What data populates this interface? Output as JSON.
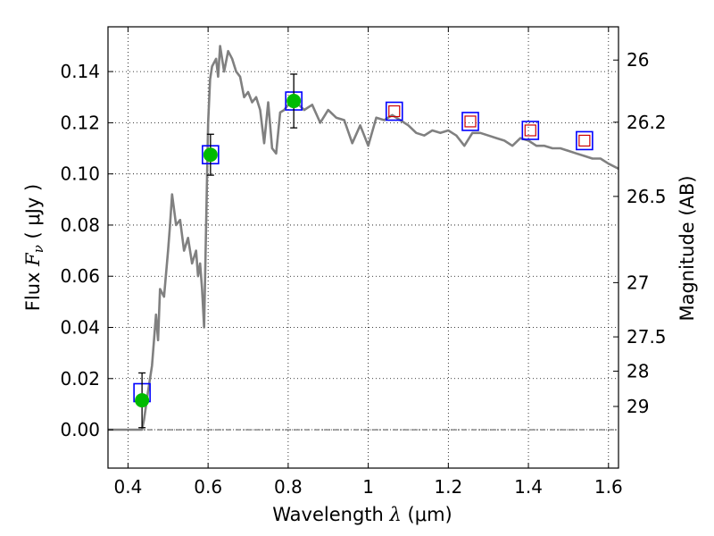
{
  "chart_data": {
    "type": "line",
    "xlabel": "Wavelength",
    "xlabel_symbol": "λ",
    "xlabel_unit": "(μm)",
    "ylabel": "Flux",
    "ylabel_symbol": "F",
    "ylabel_subscript": "ν",
    "ylabel_unit": "( μJy )",
    "y2label": "Magnitude (AB)",
    "xlim": [
      0.35,
      1.625
    ],
    "ylim": [
      -0.015,
      0.1575
    ],
    "x_ticks": [
      0.4,
      0.6,
      0.8,
      1.0,
      1.2,
      1.4,
      1.6
    ],
    "x_tick_labels": [
      "0.4",
      "0.6",
      "0.8",
      "1",
      "1.2",
      "1.4",
      "1.6"
    ],
    "y_ticks": [
      0.0,
      0.02,
      0.04,
      0.06,
      0.08,
      0.1,
      0.12,
      0.14
    ],
    "y_tick_labels": [
      "0.00",
      "0.02",
      "0.04",
      "0.06",
      "0.08",
      "0.10",
      "0.12",
      "0.14"
    ],
    "y2_ticks": [
      {
        "label": "26",
        "flux": 0.1445
      },
      {
        "label": "26.2",
        "flux": 0.1202
      },
      {
        "label": "26.5",
        "flux": 0.0912
      },
      {
        "label": "27",
        "flux": 0.0575
      },
      {
        "label": "27.5",
        "flux": 0.0363
      },
      {
        "label": "28",
        "flux": 0.0229
      },
      {
        "label": "29",
        "flux": 0.0091
      }
    ],
    "grid": true,
    "zero_line": 0.0,
    "model_color": "#808080",
    "model_spectrum": [
      [
        0.35,
        0.0
      ],
      [
        0.435,
        0.0
      ],
      [
        0.44,
        0.004
      ],
      [
        0.45,
        0.015
      ],
      [
        0.46,
        0.025
      ],
      [
        0.47,
        0.045
      ],
      [
        0.475,
        0.035
      ],
      [
        0.48,
        0.055
      ],
      [
        0.49,
        0.052
      ],
      [
        0.5,
        0.07
      ],
      [
        0.505,
        0.08
      ],
      [
        0.51,
        0.092
      ],
      [
        0.52,
        0.08
      ],
      [
        0.53,
        0.082
      ],
      [
        0.54,
        0.07
      ],
      [
        0.55,
        0.075
      ],
      [
        0.56,
        0.065
      ],
      [
        0.57,
        0.07
      ],
      [
        0.575,
        0.06
      ],
      [
        0.58,
        0.065
      ],
      [
        0.585,
        0.055
      ],
      [
        0.59,
        0.04
      ],
      [
        0.6,
        0.12
      ],
      [
        0.605,
        0.137
      ],
      [
        0.61,
        0.142
      ],
      [
        0.62,
        0.145
      ],
      [
        0.625,
        0.138
      ],
      [
        0.63,
        0.15
      ],
      [
        0.64,
        0.14
      ],
      [
        0.65,
        0.148
      ],
      [
        0.66,
        0.145
      ],
      [
        0.67,
        0.14
      ],
      [
        0.68,
        0.138
      ],
      [
        0.69,
        0.13
      ],
      [
        0.7,
        0.132
      ],
      [
        0.71,
        0.128
      ],
      [
        0.72,
        0.13
      ],
      [
        0.73,
        0.125
      ],
      [
        0.74,
        0.112
      ],
      [
        0.75,
        0.128
      ],
      [
        0.76,
        0.11
      ],
      [
        0.77,
        0.108
      ],
      [
        0.78,
        0.124
      ],
      [
        0.79,
        0.125
      ],
      [
        0.8,
        0.127
      ],
      [
        0.82,
        0.128
      ],
      [
        0.84,
        0.125
      ],
      [
        0.86,
        0.127
      ],
      [
        0.88,
        0.12
      ],
      [
        0.9,
        0.125
      ],
      [
        0.92,
        0.122
      ],
      [
        0.94,
        0.121
      ],
      [
        0.96,
        0.112
      ],
      [
        0.98,
        0.119
      ],
      [
        1.0,
        0.111
      ],
      [
        1.02,
        0.122
      ],
      [
        1.04,
        0.121
      ],
      [
        1.06,
        0.123
      ],
      [
        1.08,
        0.121
      ],
      [
        1.1,
        0.119
      ],
      [
        1.12,
        0.116
      ],
      [
        1.14,
        0.115
      ],
      [
        1.16,
        0.117
      ],
      [
        1.18,
        0.116
      ],
      [
        1.2,
        0.117
      ],
      [
        1.22,
        0.115
      ],
      [
        1.24,
        0.111
      ],
      [
        1.26,
        0.116
      ],
      [
        1.28,
        0.116
      ],
      [
        1.3,
        0.115
      ],
      [
        1.32,
        0.114
      ],
      [
        1.34,
        0.113
      ],
      [
        1.36,
        0.111
      ],
      [
        1.38,
        0.114
      ],
      [
        1.4,
        0.113
      ],
      [
        1.42,
        0.111
      ],
      [
        1.44,
        0.111
      ],
      [
        1.46,
        0.11
      ],
      [
        1.48,
        0.11
      ],
      [
        1.5,
        0.109
      ],
      [
        1.52,
        0.108
      ],
      [
        1.54,
        0.107
      ],
      [
        1.56,
        0.106
      ],
      [
        1.58,
        0.106
      ],
      [
        1.6,
        0.104
      ],
      [
        1.625,
        0.102
      ]
    ],
    "observed_points": [
      {
        "x": 0.435,
        "y": 0.0115,
        "yerr": 0.0107,
        "color": "#00bb00"
      },
      {
        "x": 0.606,
        "y": 0.1075,
        "yerr": 0.008,
        "color": "#00bb00"
      },
      {
        "x": 0.814,
        "y": 0.1285,
        "yerr": 0.0105,
        "color": "#00bb00"
      }
    ],
    "model_band_fluxes": [
      {
        "x": 0.435,
        "y": 0.0145,
        "predicted_only": false
      },
      {
        "x": 0.606,
        "y": 0.1075,
        "predicted_only": false
      },
      {
        "x": 0.814,
        "y": 0.1285,
        "predicted_only": false
      },
      {
        "x": 1.065,
        "y": 0.1245,
        "predicted_only": true
      },
      {
        "x": 1.255,
        "y": 0.1205,
        "predicted_only": true
      },
      {
        "x": 1.405,
        "y": 0.117,
        "predicted_only": true
      },
      {
        "x": 1.54,
        "y": 0.113,
        "predicted_only": true
      }
    ],
    "band_box_color": "#0000ff",
    "predicted_marker_color": "#cc0000"
  }
}
